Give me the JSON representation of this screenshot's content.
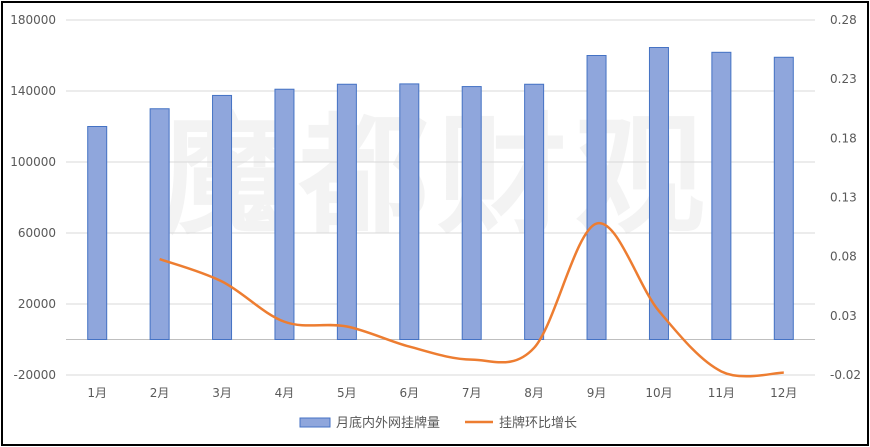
{
  "chart_data": {
    "type": "bar+line",
    "title": "",
    "categories": [
      "1月",
      "2月",
      "3月",
      "4月",
      "5月",
      "6月",
      "7月",
      "8月",
      "9月",
      "10月",
      "11月",
      "12月"
    ],
    "series": [
      {
        "name": "月底内外网挂牌量",
        "type": "bar",
        "axis": "left",
        "color": "#8fa6dc",
        "values": [
          120000,
          130000,
          137500,
          141000,
          143800,
          144000,
          142500,
          143800,
          160000,
          164500,
          161800,
          159000
        ]
      },
      {
        "name": "挂牌环比增长",
        "type": "line",
        "axis": "right",
        "color": "#ed7d31",
        "values": [
          null,
          0.078,
          0.059,
          0.025,
          0.021,
          0.004,
          -0.007,
          0.003,
          0.108,
          0.034,
          -0.017,
          -0.018
        ]
      }
    ],
    "y_left": {
      "min": -20000,
      "max": 180000,
      "ticks": [
        -20000,
        20000,
        60000,
        100000,
        140000,
        180000
      ]
    },
    "y_right": {
      "min": -0.02,
      "max": 0.28,
      "ticks": [
        "-0.02",
        "0.03",
        "0.08",
        "0.13",
        "0.18",
        "0.23",
        "0.28"
      ]
    },
    "bar_baseline": 0,
    "grid": "horizontal",
    "legend_position": "bottom"
  },
  "watermark": {
    "text": "魔都财观"
  }
}
